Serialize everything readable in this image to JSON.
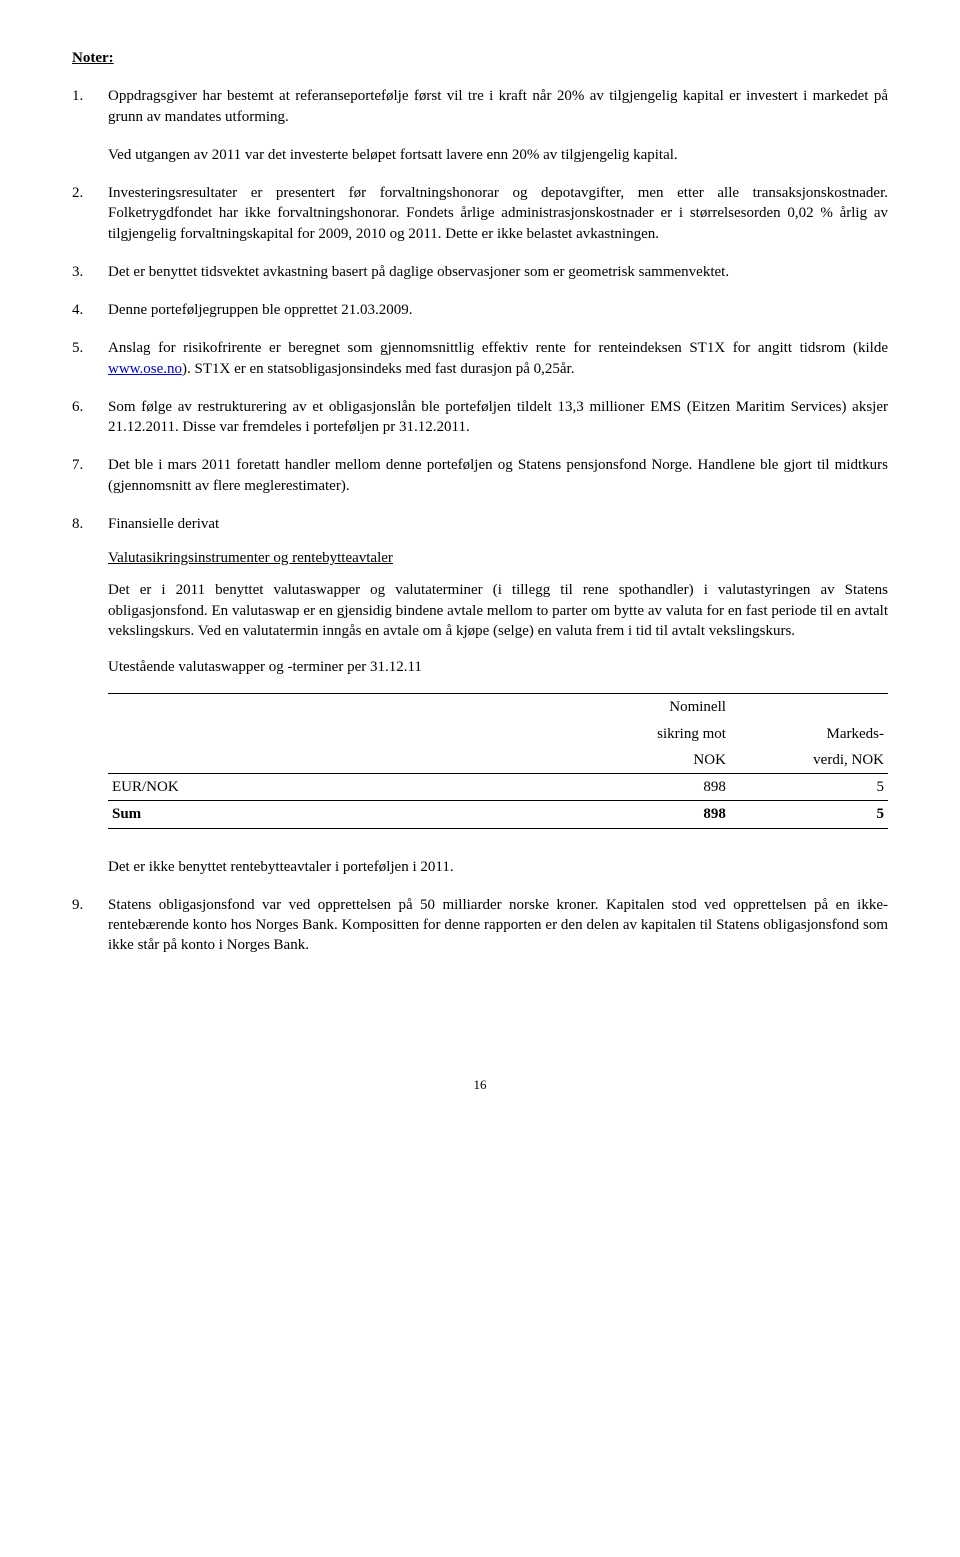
{
  "heading": "Noter:",
  "items": [
    {
      "num": "1.",
      "paras": [
        "Oppdragsgiver har bestemt at referanseportefølje først vil tre i kraft når 20% av tilgjengelig kapital er investert i markedet på grunn av mandates utforming."
      ]
    },
    {
      "num": " ",
      "paras": [
        "Ved utgangen av 2011 var det investerte beløpet fortsatt lavere enn 20% av tilgjengelig kapital."
      ]
    },
    {
      "num": "2.",
      "paras": [
        "Investeringsresultater er presentert før forvaltningshonorar og depotavgifter, men etter alle transaksjonskostnader. Folketrygdfondet har ikke forvaltningshonorar. Fondets årlige administrasjonskostnader er i størrelsesorden 0,02 % årlig av tilgjengelig forvaltningskapital for 2009, 2010 og 2011. Dette er ikke belastet avkastningen."
      ]
    },
    {
      "num": "3.",
      "paras": [
        "Det er benyttet tidsvektet avkastning basert på daglige observasjoner som er geometrisk sammenvektet."
      ]
    },
    {
      "num": "4.",
      "paras": [
        "Denne porteføljegruppen ble opprettet 21.03.2009."
      ]
    },
    {
      "num": "5.",
      "paras": [
        "Anslag for risikofrirente er beregnet som gjennomsnittlig effektiv rente for renteindeksen ST1X for angitt tidsrom (kilde ",
        {
          "link": "www.ose.no"
        },
        "). ST1X er en statsobligasjonsindeks med fast durasjon på 0,25år."
      ]
    },
    {
      "num": "6.",
      "paras": [
        "Som følge av restrukturering av et obligasjonslån ble porteføljen tildelt 13,3 millioner EMS (Eitzen Maritim Services) aksjer 21.12.2011. Disse var fremdeles i porteføljen pr 31.12.2011."
      ]
    },
    {
      "num": "7.",
      "paras": [
        "Det ble i mars 2011 foretatt handler mellom denne porteføljen og Statens pensjonsfond Norge. Handlene ble gjort til midtkurs (gjennomsnitt av flere meglerestimater)."
      ]
    },
    {
      "num": "8.",
      "paras": [
        "Finansielle derivat"
      ],
      "sub_u": "Valutasikringsinstrumenter og rentebytteavtaler",
      "sub_body": "Det er i 2011 benyttet valutaswapper og valutaterminer (i tillegg til rene spothandler) i valutastyringen av Statens obligasjonsfond. En valutaswap er en gjensidig bindene avtale mellom to parter om bytte av valuta for en fast periode til en avtalt vekslingskurs. Ved en valutatermin inngås en avtale om å kjøpe (selge) en valuta frem i tid til avtalt vekslingskurs.",
      "table_caption": "Utestående valutaswapper og -terminer per 31.12.11",
      "table": {
        "head": [
          {
            "c1": "",
            "c2": "Nominell",
            "c3": ""
          },
          {
            "c1": "",
            "c2": "sikring mot",
            "c3": "Markeds-"
          },
          {
            "c1": "",
            "c2": "NOK",
            "c3": "verdi, NOK"
          }
        ],
        "row": {
          "c1": "EUR/NOK",
          "c2": "898",
          "c3": "5"
        },
        "sum": {
          "c1": "Sum",
          "c2": "898",
          "c3": "5"
        }
      },
      "after_table": "Det er ikke benyttet rentebytteavtaler i porteføljen i 2011."
    },
    {
      "num": "9.",
      "paras": [
        "Statens obligasjonsfond var ved opprettelsen på 50 milliarder norske kroner. Kapitalen stod ved opprettelsen på en ikke-rentebærende konto hos Norges Bank. Kompositten for denne rapporten er den delen av kapitalen til Statens obligasjonsfond som ikke står på konto i Norges Bank."
      ]
    }
  ],
  "page_num": "16",
  "colors": {
    "text": "#000000",
    "background": "#ffffff",
    "link": "#0000cc",
    "border": "#000000"
  }
}
